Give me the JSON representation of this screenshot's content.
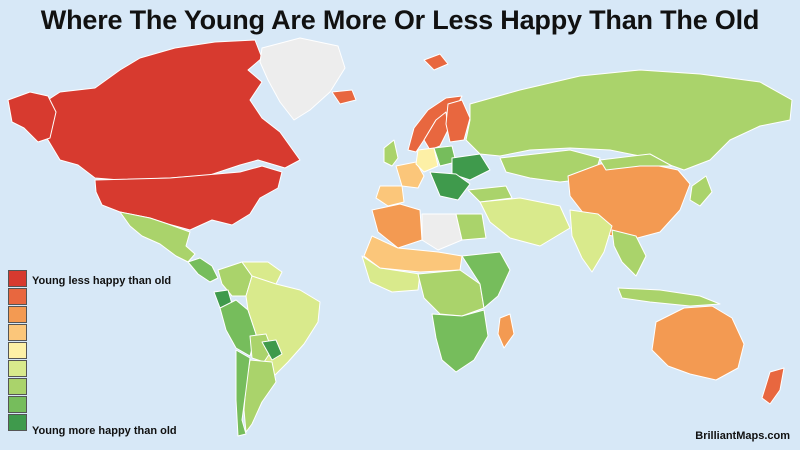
{
  "title": "Where The Young Are More Or Less Happy Than The Old",
  "legend": {
    "label_low": "Young less happy than old",
    "label_high": "Young more happy than old",
    "scale": [
      "#d73a2f",
      "#e8673f",
      "#f39a52",
      "#fbc67a",
      "#fdf0a6",
      "#d9ea8c",
      "#aad36b",
      "#76bd5c",
      "#3f9a4c"
    ]
  },
  "credit": "BrilliantMaps.com",
  "colors": {
    "ocean": "#d7e8f7",
    "no_data": "#ededed",
    "border": "#ffffff"
  },
  "regions": [
    {
      "name": "Canada",
      "level": 0
    },
    {
      "name": "United States",
      "level": 0
    },
    {
      "name": "Alaska",
      "level": 0
    },
    {
      "name": "Greenland",
      "level": "none"
    },
    {
      "name": "Mexico",
      "level": 6
    },
    {
      "name": "Central America",
      "level": 7
    },
    {
      "name": "Colombia",
      "level": 6
    },
    {
      "name": "Venezuela",
      "level": 5
    },
    {
      "name": "Ecuador",
      "level": 8
    },
    {
      "name": "Peru",
      "level": 7
    },
    {
      "name": "Brazil",
      "level": 5
    },
    {
      "name": "Bolivia",
      "level": 6
    },
    {
      "name": "Paraguay",
      "level": 8
    },
    {
      "name": "Argentina",
      "level": 6
    },
    {
      "name": "Chile",
      "level": 7
    },
    {
      "name": "Iceland",
      "level": 1
    },
    {
      "name": "Norway",
      "level": 1
    },
    {
      "name": "Sweden",
      "level": 1
    },
    {
      "name": "Finland",
      "level": 1
    },
    {
      "name": "UK",
      "level": 6
    },
    {
      "name": "France",
      "level": 3
    },
    {
      "name": "Spain",
      "level": 3
    },
    {
      "name": "Germany",
      "level": 4
    },
    {
      "name": "Poland",
      "level": 7
    },
    {
      "name": "Ukraine",
      "level": 8
    },
    {
      "name": "Balkans",
      "level": 8
    },
    {
      "name": "Russia",
      "level": 6
    },
    {
      "name": "Kazakhstan",
      "level": 6
    },
    {
      "name": "Turkey",
      "level": 6
    },
    {
      "name": "Middle East",
      "level": 5
    },
    {
      "name": "China",
      "level": 2
    },
    {
      "name": "Mongolia",
      "level": 6
    },
    {
      "name": "India",
      "level": 5
    },
    {
      "name": "Southeast Asia",
      "level": 6
    },
    {
      "name": "Japan",
      "level": 6
    },
    {
      "name": "Indonesia",
      "level": 6
    },
    {
      "name": "Algeria",
      "level": 2
    },
    {
      "name": "West Africa",
      "level": 5
    },
    {
      "name": "Sahel",
      "level": 3
    },
    {
      "name": "Libya",
      "level": "none"
    },
    {
      "name": "Egypt",
      "level": 6
    },
    {
      "name": "Central Africa",
      "level": 6
    },
    {
      "name": "East Africa",
      "level": 7
    },
    {
      "name": "Southern Africa",
      "level": 7
    },
    {
      "name": "Madagascar",
      "level": 2
    },
    {
      "name": "Australia",
      "level": 2
    },
    {
      "name": "New Zealand",
      "level": 1
    },
    {
      "name": "Svalbard",
      "level": 1
    }
  ]
}
